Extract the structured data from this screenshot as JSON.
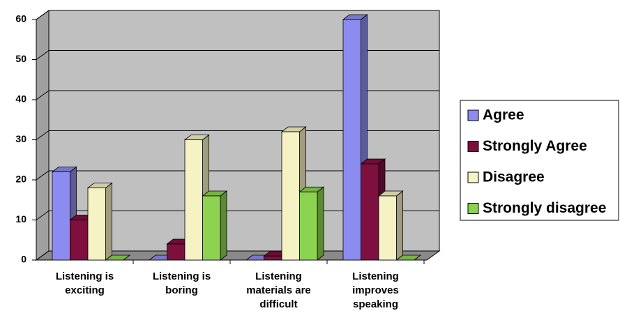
{
  "chart_data": {
    "type": "bar",
    "categories": [
      "Listening is exciting",
      "Listening is boring",
      "Listening materials are difficult",
      "Listening improves speaking"
    ],
    "series": [
      {
        "name": "Agree",
        "color": "#8c8cf0",
        "values": [
          22,
          0,
          0,
          60
        ]
      },
      {
        "name": "Strongly Agree",
        "color": "#7e1040",
        "values": [
          10,
          4,
          1,
          24
        ]
      },
      {
        "name": "Disagree",
        "color": "#f5f2c4",
        "values": [
          18,
          30,
          32,
          16
        ]
      },
      {
        "name": "Strongly disagree",
        "color": "#8cd350",
        "values": [
          0,
          16,
          17,
          0
        ]
      }
    ],
    "ylim": [
      0,
      60
    ],
    "yticks": [
      0,
      10,
      20,
      30,
      40,
      50,
      60
    ],
    "grid": true,
    "legend": "right"
  }
}
